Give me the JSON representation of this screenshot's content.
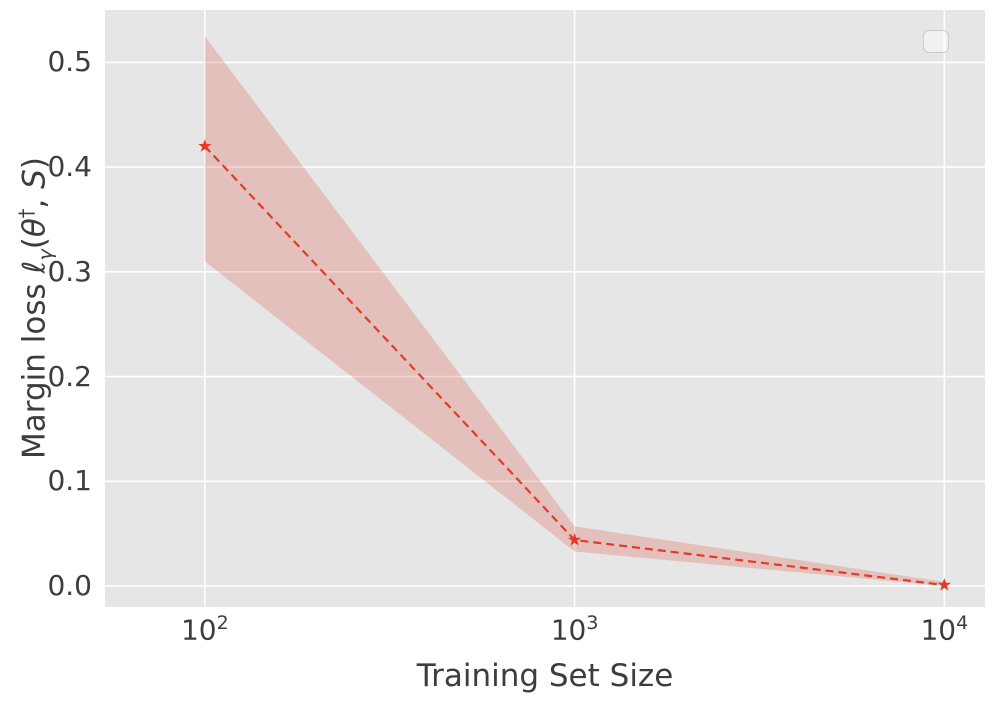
{
  "figure": {
    "background": "#ffffff",
    "plot_background": "#e6e6e6",
    "grid_color": "#ffffff",
    "text_color": "#3d3d3d"
  },
  "chart_data": {
    "type": "line",
    "title": "",
    "xlabel": "Training Set Size",
    "ylabel_text": "Margin loss ℓ_γ(θ†, S)",
    "ylabel_parts": {
      "prefix": "Margin loss ",
      "ell": "ℓ",
      "gamma_sub": "γ",
      "paren_open": "(",
      "theta": "θ",
      "dagger_sup": "†",
      "comma": ", ",
      "s": "S",
      "paren_close": ")"
    },
    "x_scale": "log10",
    "grid": true,
    "legend": "empty-box-top-right",
    "x": [
      100,
      1000,
      10000
    ],
    "series": [
      {
        "name": "margin loss",
        "color": "#e23b28",
        "line_style": "dashed",
        "marker": "star",
        "values": [
          0.42,
          0.044,
          0.001
        ],
        "band_lower": [
          0.31,
          0.033,
          0.0
        ],
        "band_upper": [
          0.525,
          0.057,
          0.004
        ],
        "band_color": "#e0392b",
        "band_opacity": 0.22
      }
    ],
    "xlim_log10": [
      1.73,
      4.11
    ],
    "ylim": [
      -0.02,
      0.55
    ],
    "xticks": [
      {
        "value": 100,
        "base": "10",
        "exp": "2"
      },
      {
        "value": 1000,
        "base": "10",
        "exp": "3"
      },
      {
        "value": 10000,
        "base": "10",
        "exp": "4"
      }
    ],
    "yticks": [
      0.0,
      0.1,
      0.2,
      0.3,
      0.4,
      0.5
    ],
    "ytick_labels": [
      "0.0",
      "0.1",
      "0.2",
      "0.3",
      "0.4",
      "0.5"
    ]
  }
}
